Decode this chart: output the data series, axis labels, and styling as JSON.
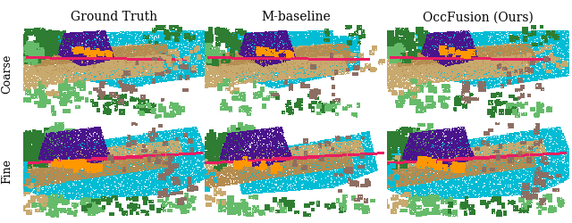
{
  "col_titles": [
    "Ground Truth",
    "M-baseline",
    "OccFusion (Ours)"
  ],
  "row_labels": [
    "Coarse",
    "Fine"
  ],
  "col_title_fontsize": 10,
  "row_label_fontsize": 9,
  "background_color": "#ffffff",
  "border_color": "#000000",
  "fig_width": 6.4,
  "fig_height": 2.51,
  "dpi": 100,
  "colors": {
    "cyan": [
      0,
      188,
      212
    ],
    "green_dark": [
      46,
      125,
      50
    ],
    "green_light": [
      102,
      187,
      106
    ],
    "tan": [
      200,
      169,
      110
    ],
    "brown": [
      141,
      110,
      99
    ],
    "purple_dark": [
      74,
      20,
      140
    ],
    "orange": [
      255,
      152,
      0
    ],
    "magenta": [
      233,
      30,
      99
    ],
    "white": [
      255,
      255,
      255
    ],
    "gray": [
      200,
      200,
      200
    ],
    "dark_tan": [
      180,
      140,
      80
    ],
    "green_olive": [
      130,
      160,
      50
    ]
  }
}
